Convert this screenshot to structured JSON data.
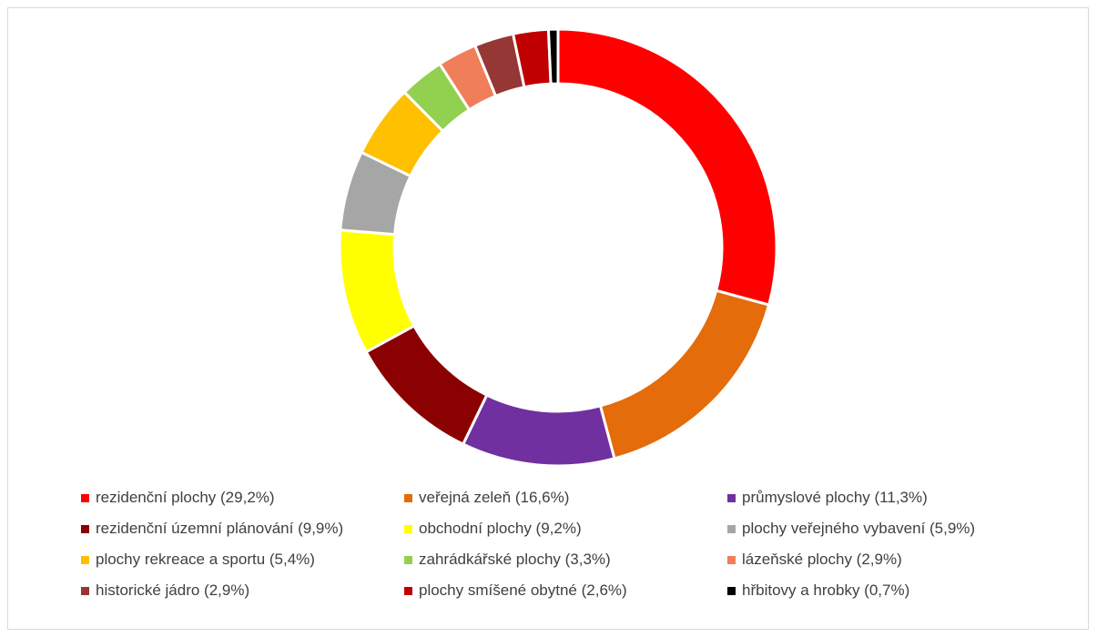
{
  "chart_data": {
    "type": "pie",
    "variant": "donut",
    "title": "",
    "legend_position": "bottom",
    "slices": [
      {
        "label": "rezidenční plochy (29,2%)",
        "value": 29.2,
        "color": "#ff0000"
      },
      {
        "label": "veřejná zeleň (16,6%)",
        "value": 16.6,
        "color": "#e46c0a"
      },
      {
        "label": "průmyslové plochy (11,3%)",
        "value": 11.3,
        "color": "#7030a0"
      },
      {
        "label": "rezidenční územní plánování (9,9%)",
        "value": 9.9,
        "color": "#8b0000"
      },
      {
        "label": "obchodní plochy (9,2%)",
        "value": 9.2,
        "color": "#ffff00"
      },
      {
        "label": "plochy veřejného vybavení (5,9%)",
        "value": 5.9,
        "color": "#a6a6a6"
      },
      {
        "label": "plochy rekreace a sportu (5,4%)",
        "value": 5.4,
        "color": "#ffc000"
      },
      {
        "label": "zahrádkářské plochy (3,3%)",
        "value": 3.3,
        "color": "#92d050"
      },
      {
        "label": "lázeňské plochy (2,9%)",
        "value": 2.9,
        "color": "#f07e5a"
      },
      {
        "label": "historické jádro (2,9%)",
        "value": 2.9,
        "color": "#953735"
      },
      {
        "label": "plochy smíšené obytné (2,6%)",
        "value": 2.6,
        "color": "#c00000"
      },
      {
        "label": "hřbitovy a hrobky (0,7%)",
        "value": 0.7,
        "color": "#000000"
      }
    ]
  }
}
